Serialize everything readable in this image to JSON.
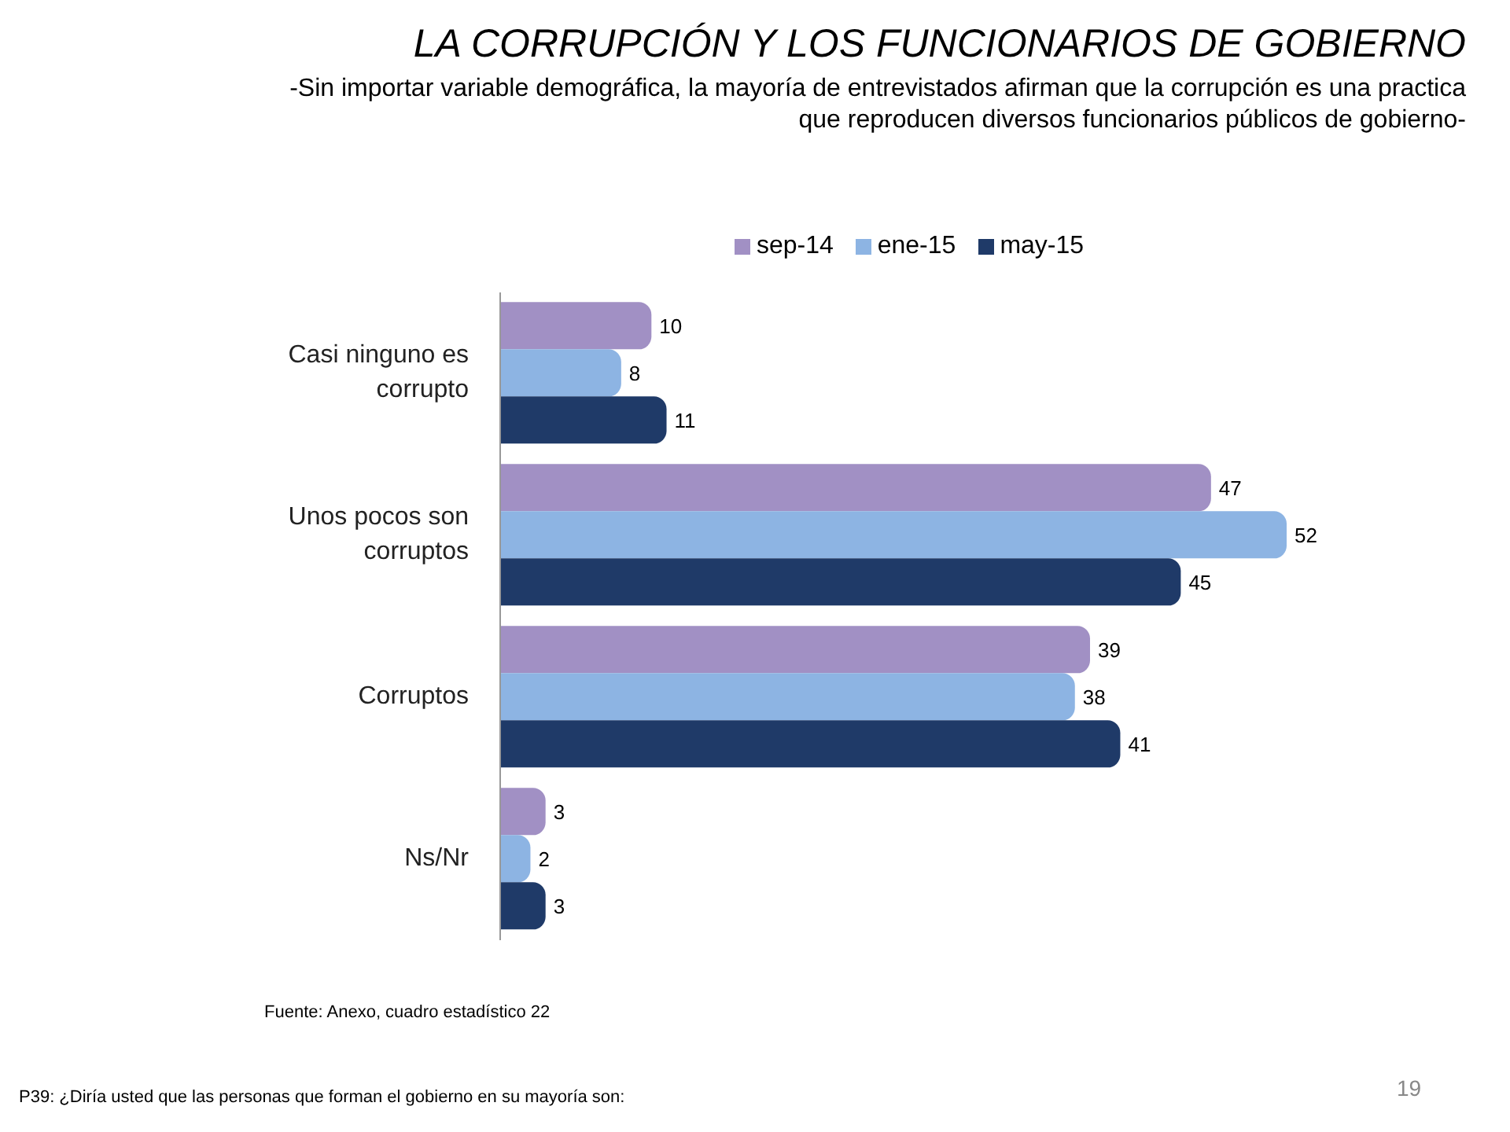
{
  "chart_data": {
    "type": "bar",
    "orientation": "horizontal",
    "title": "LA CORRUPCIÓN Y LOS FUNCIONARIOS DE GOBIERNO",
    "subtitle": "-Sin importar variable demográfica, la mayoría de entrevistados afirman que la corrupción es una practica que reproducen diversos funcionarios públicos de gobierno-",
    "categories": [
      "Casi ninguno es corrupto",
      "Unos pocos son corruptos",
      "Corruptos",
      "Ns/Nr"
    ],
    "series": [
      {
        "name": "sep-14",
        "color": "#a190c4",
        "values": [
          10,
          47,
          39,
          3
        ]
      },
      {
        "name": "ene-15",
        "color": "#8db4e3",
        "values": [
          8,
          52,
          38,
          2
        ]
      },
      {
        "name": "may-15",
        "color": "#1f3a68",
        "values": [
          11,
          45,
          41,
          3
        ]
      }
    ],
    "data_labels": true,
    "legend": "top",
    "annotations": [
      "Fuente:  Anexo, cuadro estadístico  22",
      "P39: ¿Diría usted que las personas que forman el gobierno en su mayoría son:",
      "19"
    ]
  }
}
